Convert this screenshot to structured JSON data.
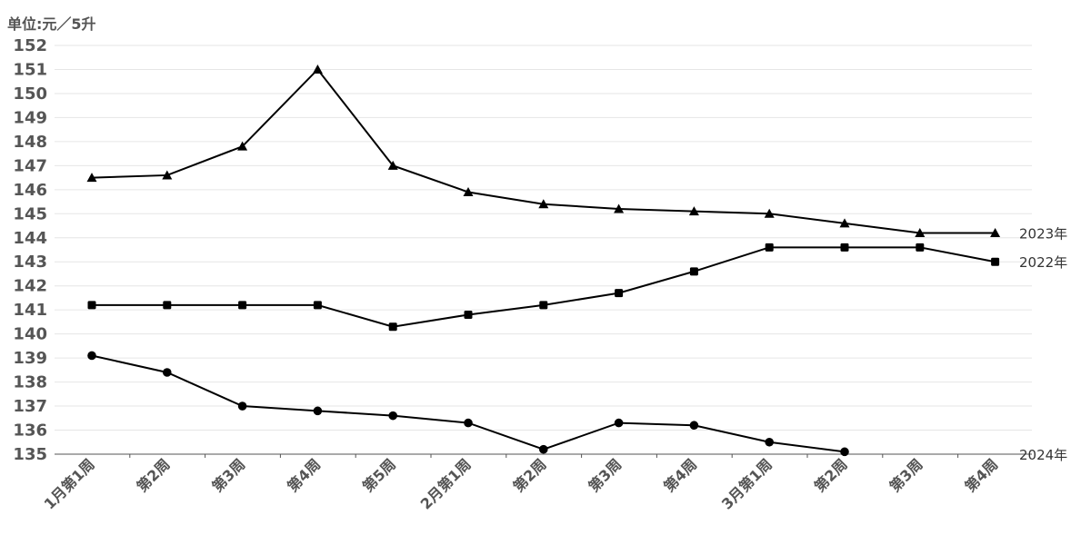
{
  "unit_label": "单位:元／5升",
  "chart_data": {
    "type": "line",
    "categories": [
      "1月第1周",
      "第2周",
      "第3周",
      "第4周",
      "第5周",
      "2月第1周",
      "第2周",
      "第3周",
      "第4周",
      "3月第1周",
      "第2周",
      "第3周",
      "第4周"
    ],
    "ylim": [
      135,
      152
    ],
    "yticks": [
      135,
      136,
      137,
      138,
      139,
      140,
      141,
      142,
      143,
      144,
      145,
      146,
      147,
      148,
      149,
      150,
      151,
      152
    ],
    "grid": true,
    "series": [
      {
        "name": "2023年",
        "marker": "triangle",
        "values": [
          146.5,
          146.6,
          147.8,
          151.0,
          147.0,
          145.9,
          145.4,
          145.2,
          145.1,
          145.0,
          144.6,
          144.2,
          144.2
        ]
      },
      {
        "name": "2022年",
        "marker": "square",
        "values": [
          141.2,
          141.2,
          141.2,
          141.2,
          140.3,
          140.8,
          141.2,
          141.7,
          142.6,
          143.6,
          143.6,
          143.6,
          143.0
        ]
      },
      {
        "name": "2024年",
        "marker": "circle",
        "values": [
          139.1,
          138.4,
          137.0,
          136.8,
          136.6,
          136.3,
          135.2,
          136.3,
          136.2,
          135.5,
          135.1,
          null,
          null
        ]
      }
    ]
  }
}
